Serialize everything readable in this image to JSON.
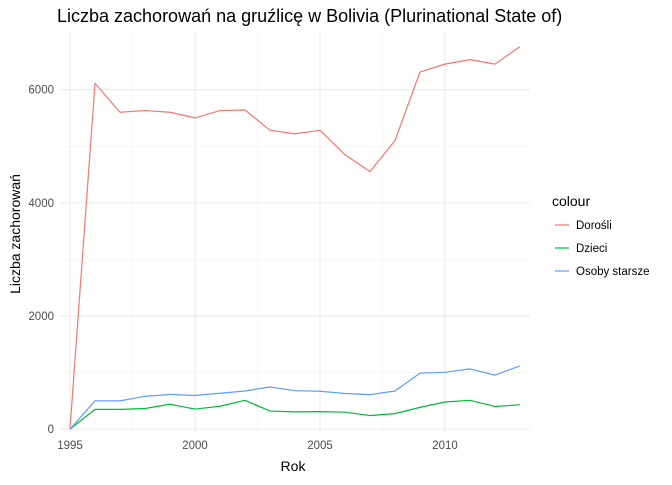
{
  "chart_data": {
    "type": "line",
    "title": "Liczba zachorowań na gruźlicę w Bolivia (Plurinational State of)",
    "xlabel": "Rok",
    "ylabel": "Liczba zachorowań",
    "x": [
      1995,
      1996,
      1997,
      1998,
      1999,
      2000,
      2001,
      2002,
      2003,
      2004,
      2005,
      2006,
      2007,
      2008,
      2009,
      2010,
      2011,
      2012,
      2013
    ],
    "xlim": [
      1994.6,
      2013.4
    ],
    "ylim": [
      -50,
      7000
    ],
    "x_ticks": [
      1995,
      2000,
      2005,
      2010
    ],
    "y_ticks": [
      0,
      2000,
      4000,
      6000
    ],
    "grid": true,
    "legend": {
      "title": "colour",
      "position": "right"
    },
    "series": [
      {
        "name": "Dorośli",
        "color": "#F8766D",
        "values": [
          0,
          6110,
          5600,
          5630,
          5600,
          5500,
          5630,
          5640,
          5280,
          5220,
          5280,
          4850,
          4550,
          5100,
          6310,
          6450,
          6530,
          6450,
          6760
        ]
      },
      {
        "name": "Dzieci",
        "color": "#00BA38",
        "values": [
          0,
          350,
          350,
          365,
          440,
          355,
          405,
          510,
          320,
          305,
          310,
          300,
          240,
          275,
          385,
          480,
          510,
          400,
          430
        ]
      },
      {
        "name": "Osoby starsze",
        "color": "#619CFF",
        "values": [
          0,
          500,
          500,
          580,
          615,
          595,
          635,
          675,
          745,
          680,
          670,
          630,
          610,
          675,
          990,
          1005,
          1065,
          955,
          1120
        ]
      }
    ]
  }
}
